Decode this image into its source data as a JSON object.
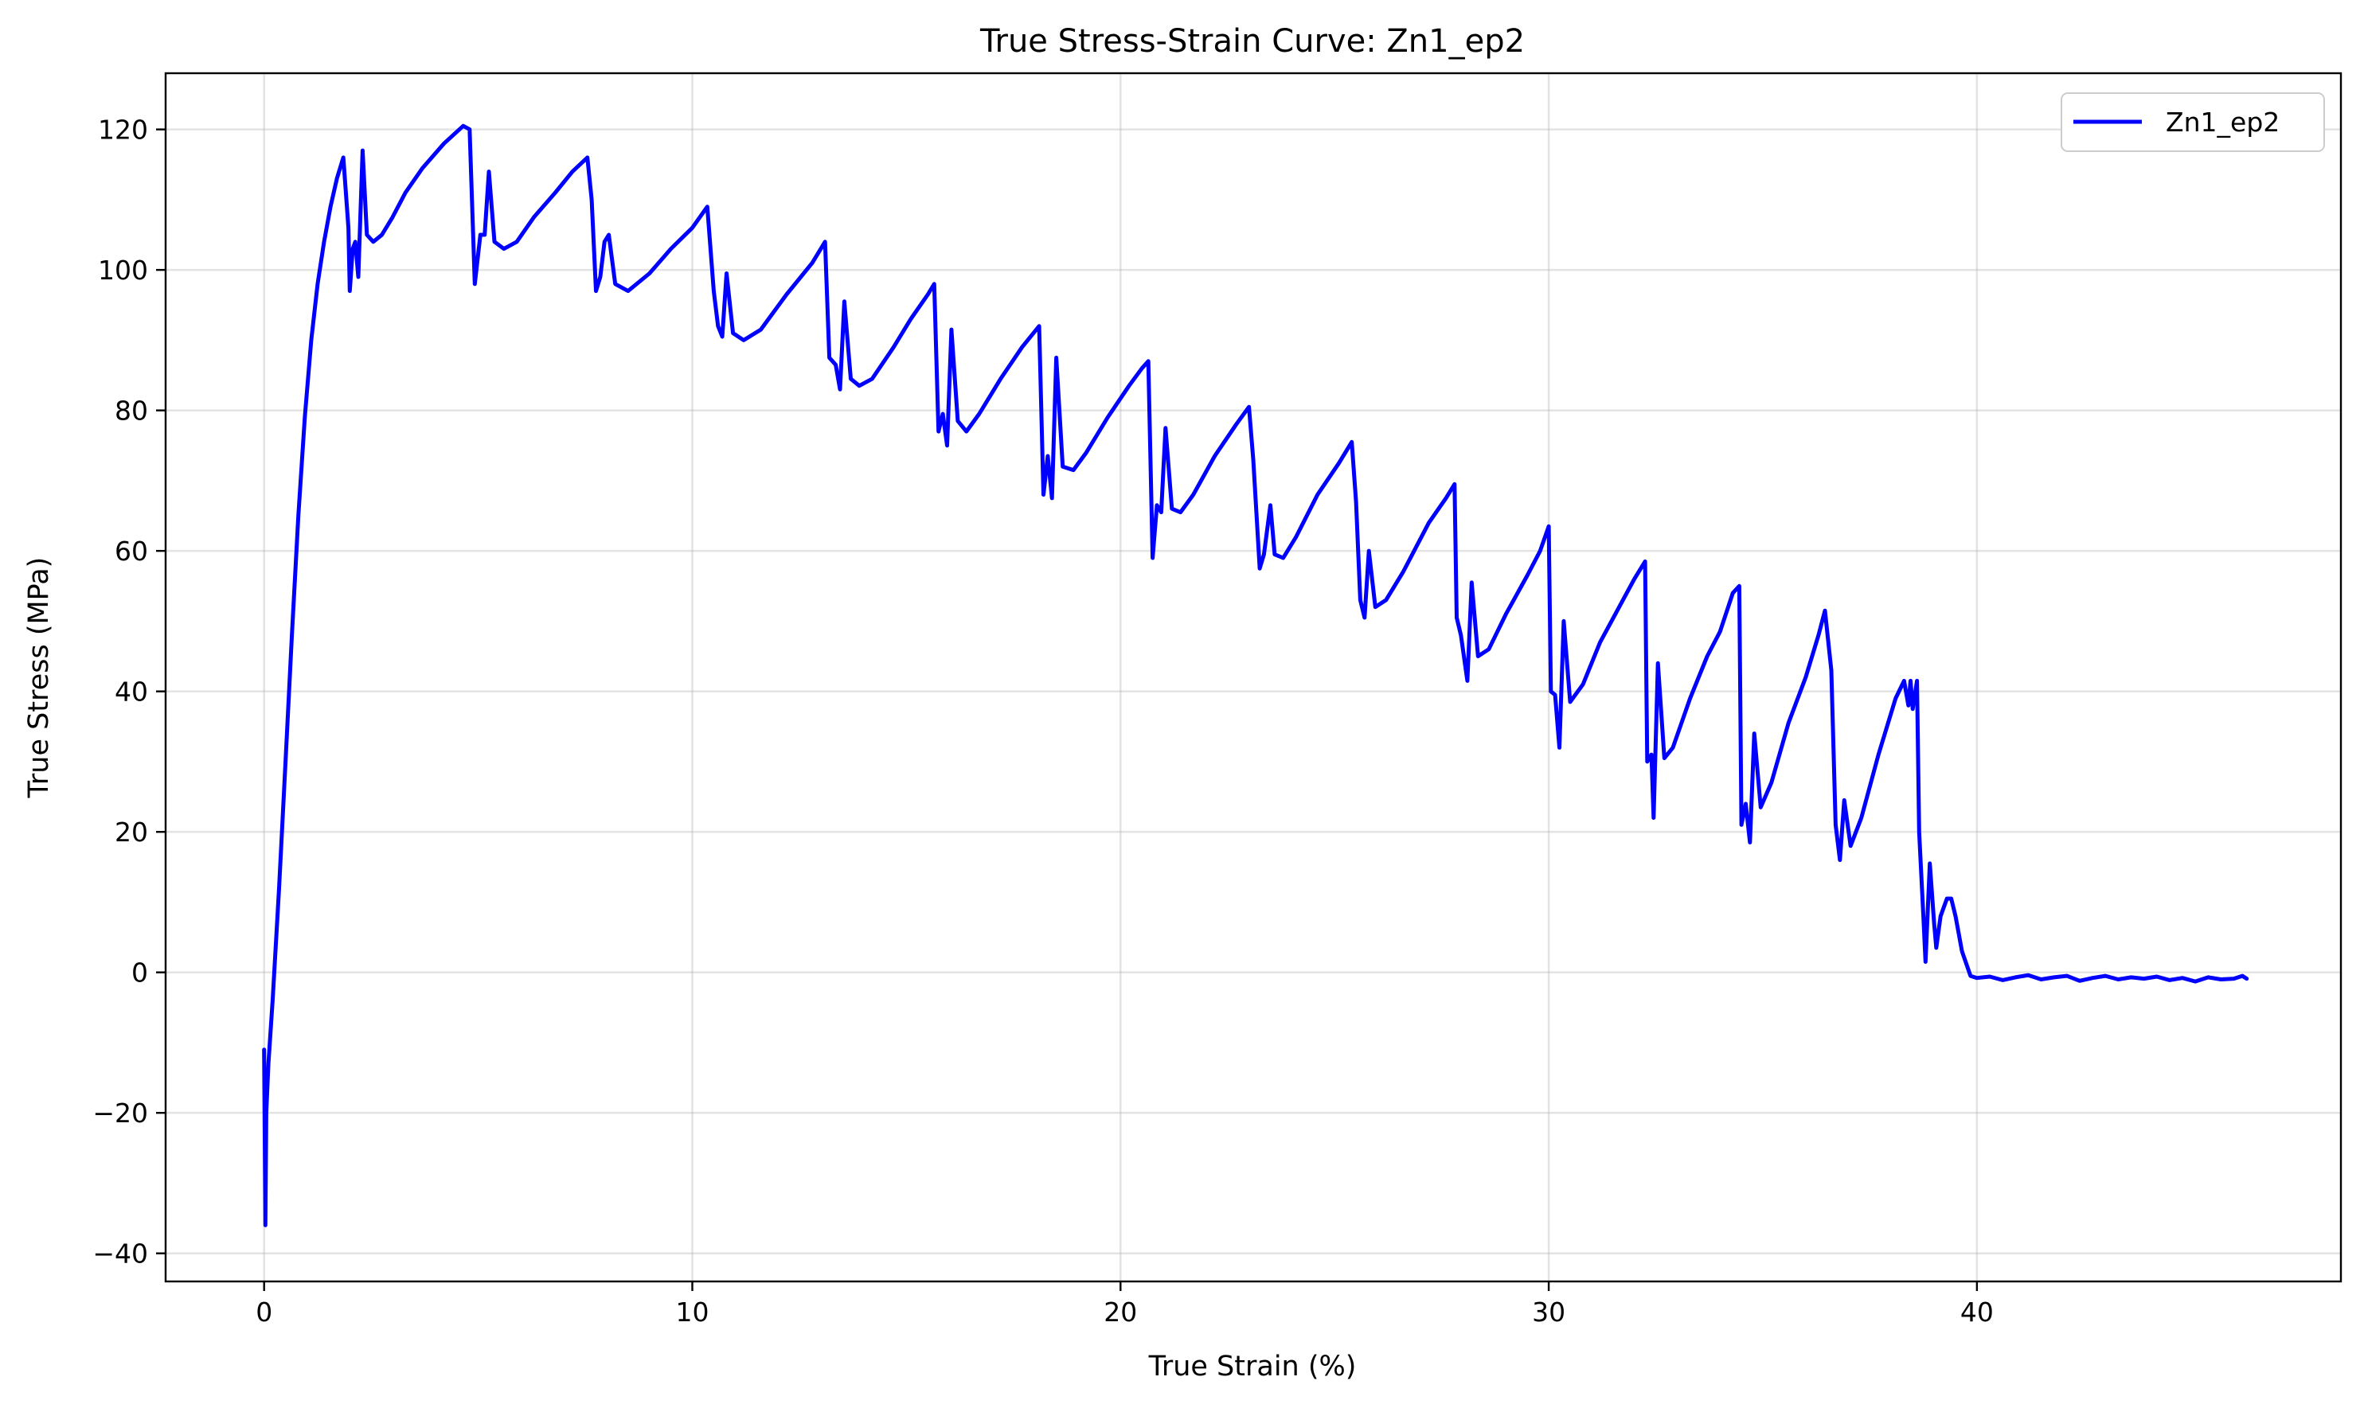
{
  "chart_data": {
    "type": "line",
    "title": "True Stress-Strain Curve: Zn1_ep2",
    "xlabel": "True Strain (%)",
    "ylabel": "True Stress (MPa)",
    "xlim": [
      -2.3,
      48.5
    ],
    "ylim": [
      -44,
      128
    ],
    "x_ticks": [
      0,
      10,
      20,
      30,
      40
    ],
    "y_ticks": [
      -40,
      -20,
      0,
      20,
      40,
      60,
      80,
      100,
      120
    ],
    "grid": true,
    "legend": {
      "position": "top-right",
      "entries": [
        "Zn1_ep2"
      ]
    },
    "series": [
      {
        "name": "Zn1_ep2",
        "color": "#0000ff",
        "points": [
          [
            0.0,
            -11
          ],
          [
            0.03,
            -36
          ],
          [
            0.05,
            -20
          ],
          [
            0.1,
            -13
          ],
          [
            0.2,
            -4
          ],
          [
            0.35,
            12
          ],
          [
            0.5,
            30
          ],
          [
            0.65,
            48
          ],
          [
            0.8,
            65
          ],
          [
            0.95,
            79
          ],
          [
            1.1,
            90
          ],
          [
            1.25,
            98
          ],
          [
            1.4,
            104
          ],
          [
            1.55,
            109
          ],
          [
            1.7,
            113
          ],
          [
            1.85,
            116
          ],
          [
            1.97,
            106
          ],
          [
            2.0,
            97
          ],
          [
            2.07,
            103
          ],
          [
            2.13,
            104
          ],
          [
            2.2,
            99
          ],
          [
            2.3,
            117
          ],
          [
            2.4,
            105
          ],
          [
            2.55,
            104
          ],
          [
            2.75,
            105
          ],
          [
            3.0,
            107.5
          ],
          [
            3.3,
            111
          ],
          [
            3.7,
            114.5
          ],
          [
            4.2,
            118
          ],
          [
            4.65,
            120.5
          ],
          [
            4.8,
            120
          ],
          [
            4.92,
            98
          ],
          [
            5.05,
            105
          ],
          [
            5.15,
            105
          ],
          [
            5.25,
            114
          ],
          [
            5.38,
            104
          ],
          [
            5.6,
            103
          ],
          [
            5.9,
            104
          ],
          [
            6.3,
            107.5
          ],
          [
            6.8,
            111
          ],
          [
            7.2,
            114
          ],
          [
            7.55,
            116
          ],
          [
            7.65,
            110
          ],
          [
            7.75,
            97
          ],
          [
            7.85,
            99
          ],
          [
            7.95,
            104
          ],
          [
            8.05,
            105
          ],
          [
            8.2,
            98
          ],
          [
            8.5,
            97
          ],
          [
            9.0,
            99.5
          ],
          [
            9.5,
            103
          ],
          [
            10.0,
            106
          ],
          [
            10.35,
            109
          ],
          [
            10.5,
            97
          ],
          [
            10.6,
            92
          ],
          [
            10.7,
            90.5
          ],
          [
            10.8,
            99.5
          ],
          [
            10.95,
            91
          ],
          [
            11.2,
            90
          ],
          [
            11.6,
            91.5
          ],
          [
            12.2,
            96.5
          ],
          [
            12.8,
            101
          ],
          [
            13.1,
            104
          ],
          [
            13.2,
            87.5
          ],
          [
            13.35,
            86.5
          ],
          [
            13.45,
            83
          ],
          [
            13.55,
            95.5
          ],
          [
            13.7,
            84.5
          ],
          [
            13.9,
            83.5
          ],
          [
            14.2,
            84.5
          ],
          [
            14.7,
            89
          ],
          [
            15.1,
            93
          ],
          [
            15.5,
            96.5
          ],
          [
            15.65,
            98
          ],
          [
            15.75,
            77
          ],
          [
            15.85,
            79.5
          ],
          [
            15.95,
            75
          ],
          [
            16.05,
            91.5
          ],
          [
            16.2,
            78.5
          ],
          [
            16.4,
            77
          ],
          [
            16.7,
            79.5
          ],
          [
            17.2,
            84.5
          ],
          [
            17.7,
            89
          ],
          [
            18.1,
            92
          ],
          [
            18.2,
            68
          ],
          [
            18.3,
            73.5
          ],
          [
            18.4,
            67.5
          ],
          [
            18.5,
            87.5
          ],
          [
            18.65,
            72
          ],
          [
            18.9,
            71.5
          ],
          [
            19.2,
            74
          ],
          [
            19.7,
            79
          ],
          [
            20.2,
            83.5
          ],
          [
            20.5,
            86
          ],
          [
            20.65,
            87
          ],
          [
            20.75,
            59
          ],
          [
            20.85,
            66.5
          ],
          [
            20.95,
            65.5
          ],
          [
            21.05,
            77.5
          ],
          [
            21.2,
            66
          ],
          [
            21.4,
            65.5
          ],
          [
            21.7,
            68
          ],
          [
            22.2,
            73.5
          ],
          [
            22.7,
            78
          ],
          [
            23.0,
            80.5
          ],
          [
            23.1,
            73
          ],
          [
            23.25,
            57.5
          ],
          [
            23.35,
            59.5
          ],
          [
            23.5,
            66.5
          ],
          [
            23.6,
            59.5
          ],
          [
            23.8,
            59
          ],
          [
            24.1,
            62
          ],
          [
            24.6,
            68
          ],
          [
            25.1,
            72.5
          ],
          [
            25.4,
            75.5
          ],
          [
            25.5,
            67
          ],
          [
            25.6,
            53
          ],
          [
            25.7,
            50.5
          ],
          [
            25.8,
            60
          ],
          [
            25.95,
            52
          ],
          [
            26.2,
            53
          ],
          [
            26.6,
            57
          ],
          [
            27.2,
            64
          ],
          [
            27.6,
            67.5
          ],
          [
            27.8,
            69.5
          ],
          [
            27.85,
            50.5
          ],
          [
            27.95,
            48
          ],
          [
            28.1,
            41.5
          ],
          [
            28.2,
            55.5
          ],
          [
            28.35,
            45
          ],
          [
            28.6,
            46
          ],
          [
            29.0,
            51
          ],
          [
            29.5,
            56.5
          ],
          [
            29.8,
            60
          ],
          [
            30.0,
            63.5
          ],
          [
            30.05,
            40
          ],
          [
            30.15,
            39.5
          ],
          [
            30.25,
            32
          ],
          [
            30.35,
            50
          ],
          [
            30.5,
            38.5
          ],
          [
            30.8,
            41
          ],
          [
            31.2,
            47
          ],
          [
            31.6,
            51.5
          ],
          [
            32.0,
            56
          ],
          [
            32.25,
            58.5
          ],
          [
            32.3,
            30
          ],
          [
            32.4,
            31
          ],
          [
            32.45,
            22
          ],
          [
            32.55,
            44
          ],
          [
            32.7,
            30.5
          ],
          [
            32.9,
            32
          ],
          [
            33.3,
            39
          ],
          [
            33.7,
            45
          ],
          [
            34.0,
            48.5
          ],
          [
            34.3,
            54
          ],
          [
            34.45,
            55
          ],
          [
            34.5,
            21
          ],
          [
            34.6,
            24
          ],
          [
            34.7,
            18.5
          ],
          [
            34.8,
            34
          ],
          [
            34.95,
            23.5
          ],
          [
            35.2,
            27
          ],
          [
            35.6,
            35.5
          ],
          [
            36.0,
            42
          ],
          [
            36.3,
            48
          ],
          [
            36.45,
            51.5
          ],
          [
            36.6,
            43
          ],
          [
            36.7,
            21
          ],
          [
            36.8,
            16
          ],
          [
            36.9,
            24.5
          ],
          [
            37.05,
            18
          ],
          [
            37.3,
            22
          ],
          [
            37.7,
            31
          ],
          [
            38.1,
            39
          ],
          [
            38.3,
            41.5
          ],
          [
            38.4,
            38
          ],
          [
            38.45,
            41.5
          ],
          [
            38.5,
            37.5
          ],
          [
            38.6,
            41.5
          ],
          [
            38.65,
            20
          ],
          [
            38.75,
            8
          ],
          [
            38.8,
            1.5
          ],
          [
            38.9,
            15.5
          ],
          [
            39.0,
            7
          ],
          [
            39.05,
            3.5
          ],
          [
            39.15,
            8
          ],
          [
            39.3,
            10.5
          ],
          [
            39.4,
            10.5
          ],
          [
            39.5,
            8
          ],
          [
            39.65,
            3
          ],
          [
            39.85,
            -0.5
          ],
          [
            40.0,
            -0.8
          ],
          [
            40.3,
            -0.6
          ],
          [
            40.6,
            -1.1
          ],
          [
            40.9,
            -0.7
          ],
          [
            41.2,
            -0.4
          ],
          [
            41.5,
            -1.0
          ],
          [
            41.8,
            -0.7
          ],
          [
            42.1,
            -0.5
          ],
          [
            42.4,
            -1.2
          ],
          [
            42.7,
            -0.8
          ],
          [
            43.0,
            -0.5
          ],
          [
            43.3,
            -1.0
          ],
          [
            43.6,
            -0.7
          ],
          [
            43.9,
            -0.9
          ],
          [
            44.2,
            -0.6
          ],
          [
            44.5,
            -1.1
          ],
          [
            44.8,
            -0.8
          ],
          [
            45.1,
            -1.3
          ],
          [
            45.4,
            -0.7
          ],
          [
            45.7,
            -1.0
          ],
          [
            46.0,
            -0.9
          ],
          [
            46.2,
            -0.5
          ],
          [
            46.3,
            -0.9
          ]
        ]
      }
    ]
  }
}
